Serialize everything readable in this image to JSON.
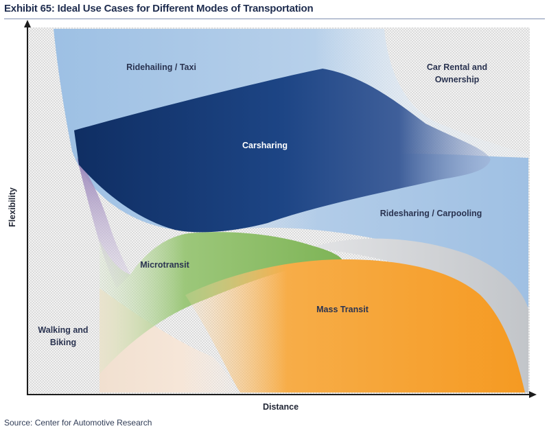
{
  "title": "Exhibit 65: Ideal Use Cases for Different Modes of Transportation",
  "source": "Source: Center for Automotive Research",
  "axes": {
    "x_label": "Distance",
    "y_label": "Flexibility"
  },
  "regions": {
    "ridehailing": "Ridehailing / Taxi",
    "car_rental_line1": "Car Rental and",
    "car_rental_line2": "Ownership",
    "carsharing": "Carsharing",
    "ridesharing": "Ridesharing / Carpooling",
    "microtransit": "Microtransit",
    "mass_transit": "Mass Transit",
    "walking_line1": "Walking and",
    "walking_line2": "Biking"
  },
  "colors": {
    "ridehailing": "#bcd3ea",
    "carsharing": "#1b3f78",
    "ridesharing": "#a9c8e6",
    "microtransit": "#8fbf6a",
    "mass_transit": "#f5a030",
    "gray_band": "#cfd2d6",
    "walking": "#f4e3d4"
  }
}
